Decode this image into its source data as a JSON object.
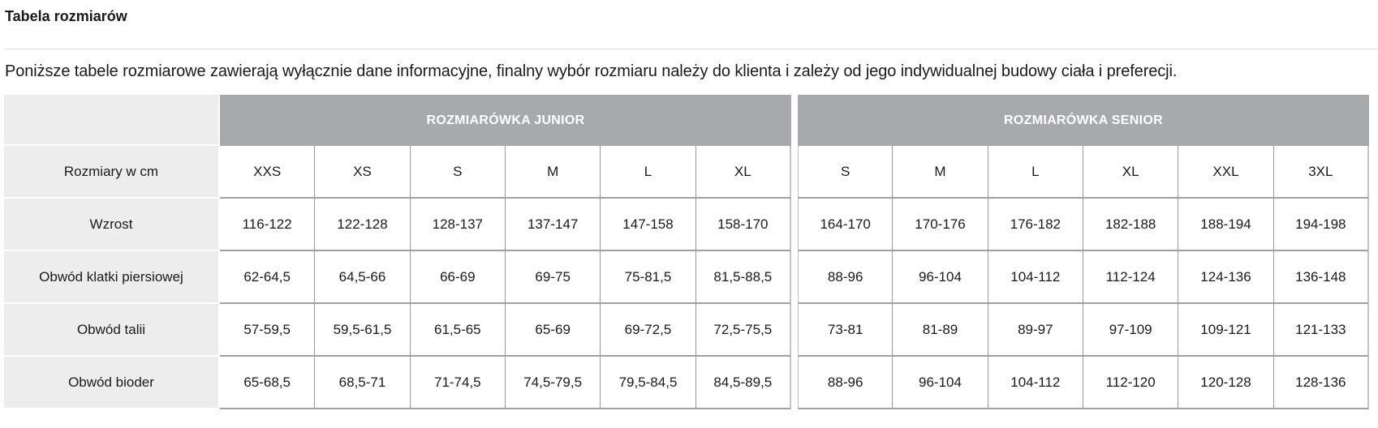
{
  "title": "Tabela rozmiarów",
  "intro": "Poniższe tabele rozmiarowe zawierają wyłącznie dane informacyjne, finalny wybór rozmiaru należy do klienta i zależy od jego indywidualnej budowy ciała i preferecji.",
  "row_labels": [
    "Rozmiary w cm",
    "Wzrost",
    "Obwód klatki piersiowej",
    "Obwód talii",
    "Obwód bioder"
  ],
  "colors": {
    "header_bg": "#a7a9ac",
    "label_bg": "#ededed"
  },
  "junior": {
    "title": "ROZMIARÓWKA JUNIOR",
    "sizes": [
      "XXS",
      "XS",
      "S",
      "M",
      "L",
      "XL"
    ],
    "rows": [
      [
        "116-122",
        "122-128",
        "128-137",
        "137-147",
        "147-158",
        "158-170"
      ],
      [
        "62-64,5",
        "64,5-66",
        "66-69",
        "69-75",
        "75-81,5",
        "81,5-88,5"
      ],
      [
        "57-59,5",
        "59,5-61,5",
        "61,5-65",
        "65-69",
        "69-72,5",
        "72,5-75,5"
      ],
      [
        "65-68,5",
        "68,5-71",
        "71-74,5",
        "74,5-79,5",
        "79,5-84,5",
        "84,5-89,5"
      ]
    ]
  },
  "senior": {
    "title": "ROZMIARÓWKA SENIOR",
    "sizes": [
      "S",
      "M",
      "L",
      "XL",
      "XXL",
      "3XL"
    ],
    "rows": [
      [
        "164-170",
        "170-176",
        "176-182",
        "182-188",
        "188-194",
        "194-198"
      ],
      [
        "88-96",
        "96-104",
        "104-112",
        "112-124",
        "124-136",
        "136-148"
      ],
      [
        "73-81",
        "81-89",
        "89-97",
        "97-109",
        "109-121",
        "121-133"
      ],
      [
        "88-96",
        "96-104",
        "104-112",
        "112-120",
        "120-128",
        "128-136"
      ]
    ]
  }
}
